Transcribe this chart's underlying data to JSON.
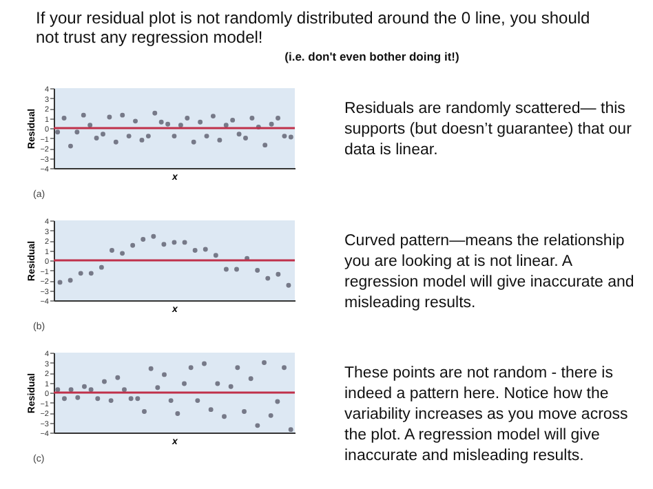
{
  "chart_data": [
    {
      "type": "scatter",
      "title": "If your residual plot is not randomly distributed around the 0 line, you should not trust any regression model!",
      "subtitle": "(i.e. don't even bother doing it!)",
      "xlabel": "x",
      "ylabel": "Residual",
      "annotations": [
        "(a)",
        "Residuals are randomly scattered— this supports (but doesn’t guarantee) that our data is linear."
      ],
      "categories": [
        null,
        null,
        null,
        null,
        null,
        null,
        null,
        null,
        null,
        null,
        null,
        null,
        null,
        null,
        null,
        null,
        null,
        null,
        null,
        null,
        null,
        null,
        null,
        null,
        null,
        null,
        null,
        null,
        null,
        null,
        null,
        null,
        null,
        null,
        null,
        null,
        null
      ],
      "series": [
        {
          "color": "#4a4a5a",
          "values": [
            -0.4,
            1.0,
            -1.8,
            -0.4,
            1.3,
            0.3,
            -1.0,
            -0.6,
            1.1,
            -1.4,
            1.3,
            -0.8,
            0.7,
            -1.2,
            -0.8,
            1.5,
            0.6,
            0.4,
            -0.8,
            0.3,
            1.0,
            -1.4,
            0.6,
            -0.8,
            1.2,
            -1.2,
            0.3,
            0.8,
            -0.6,
            -1.0,
            1.0,
            0.1,
            -1.7,
            0.4,
            1.0,
            -0.8,
            -0.9
          ]
        }
      ],
      "ylim": [
        -4,
        4
      ],
      "yticks": [
        -4,
        -3,
        -2,
        -1,
        0,
        1,
        2,
        3,
        4
      ],
      "grid": false,
      "tick_labels": "y",
      "marker": "circle",
      "ref_lines": [
        {
          "axis": "y",
          "value": 0,
          "color": "#c0304a"
        }
      ]
    },
    {
      "type": "scatter",
      "xlabel": "x",
      "ylabel": "Residual",
      "annotations": [
        "(b)",
        "Curved pattern—means the relationship you are looking at is not linear. A regression model will give inaccurate and misleading results."
      ],
      "categories": [
        null,
        null,
        null,
        null,
        null,
        null,
        null,
        null,
        null,
        null,
        null,
        null,
        null,
        null,
        null,
        null,
        null,
        null,
        null,
        null,
        null,
        null,
        null
      ],
      "series": [
        {
          "color": "#4a4a5a",
          "values": [
            -2.2,
            -2.0,
            -1.3,
            -1.3,
            -0.7,
            1.0,
            0.7,
            1.5,
            2.1,
            2.4,
            1.6,
            1.8,
            1.8,
            1.0,
            1.1,
            0.5,
            -0.9,
            -0.9,
            0.2,
            -1.0,
            -1.8,
            -1.4,
            -2.5
          ]
        }
      ],
      "ylim": [
        -4,
        4
      ],
      "yticks": [
        -4,
        -3,
        -2,
        -1,
        0,
        1,
        2,
        3,
        4
      ],
      "grid": false,
      "tick_labels": "y",
      "marker": "circle",
      "ref_lines": [
        {
          "axis": "y",
          "value": 0,
          "color": "#c0304a"
        }
      ]
    },
    {
      "type": "scatter",
      "xlabel": "x",
      "ylabel": "Residual",
      "annotations": [
        "(c)",
        "These points are not random - there is indeed a pattern here. Notice how the variability increases as you move across the plot. A regression model will give inaccurate and misleading results."
      ],
      "categories": [
        null,
        null,
        null,
        null,
        null,
        null,
        null,
        null,
        null,
        null,
        null,
        null,
        null,
        null,
        null,
        null,
        null,
        null,
        null,
        null,
        null,
        null,
        null,
        null,
        null,
        null,
        null,
        null,
        null,
        null,
        null,
        null,
        null,
        null,
        null,
        null
      ],
      "series": [
        {
          "color": "#4a4a5a",
          "values": [
            0.3,
            -0.6,
            0.3,
            -0.5,
            0.6,
            0.3,
            -0.6,
            1.1,
            -0.8,
            1.5,
            0.3,
            -0.6,
            -0.6,
            -1.9,
            2.4,
            0.5,
            1.8,
            -0.8,
            -2.1,
            0.9,
            2.5,
            -0.8,
            2.9,
            -1.7,
            0.9,
            -2.4,
            0.6,
            2.5,
            -1.9,
            1.4,
            -3.3,
            3.0,
            -2.3,
            -0.9,
            2.5,
            -3.7
          ]
        }
      ],
      "ylim": [
        -4,
        4
      ],
      "yticks": [
        -4,
        -3,
        -2,
        -1,
        0,
        1,
        2,
        3,
        4
      ],
      "grid": false,
      "tick_labels": "y",
      "marker": "circle",
      "ref_lines": [
        {
          "axis": "y",
          "value": 0,
          "color": "#c0304a"
        }
      ]
    }
  ]
}
